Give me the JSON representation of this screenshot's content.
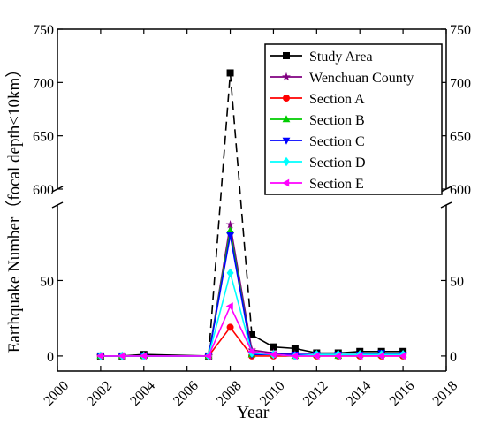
{
  "chart_data": {
    "type": "line",
    "xlabel": "Year",
    "ylabel": "Earthquake Number（focal depth<10km）",
    "xlim": [
      2000,
      2018
    ],
    "xticks": [
      2000,
      2002,
      2004,
      2006,
      2008,
      2010,
      2012,
      2014,
      2016,
      2018
    ],
    "y_axis_break": {
      "lower_range": [
        -10,
        100
      ],
      "upper_range": [
        600,
        750
      ],
      "lower_ticks": [
        0,
        50
      ],
      "upper_ticks": [
        600,
        650,
        700,
        750
      ]
    },
    "mirror_right_axis": true,
    "legend_position": "top-right",
    "x": [
      2002,
      2003,
      2004,
      2007,
      2008,
      2009,
      2010,
      2011,
      2012,
      2013,
      2014,
      2015,
      2016
    ],
    "series": [
      {
        "name": "Study Area",
        "color": "#000000",
        "marker": "square",
        "values": [
          0,
          0,
          1,
          0,
          709,
          14,
          6,
          5,
          2,
          2,
          3,
          3,
          3
        ]
      },
      {
        "name": "Wenchuan County",
        "color": "#800080",
        "marker": "star",
        "values": [
          0,
          0,
          0,
          0,
          87,
          4,
          2,
          1,
          1,
          1,
          1,
          1,
          1
        ]
      },
      {
        "name": "Section A",
        "color": "#ff0000",
        "marker": "circle",
        "values": [
          0,
          0,
          0,
          0,
          19,
          0,
          0,
          0,
          0,
          0,
          0,
          0,
          0
        ]
      },
      {
        "name": "Section B",
        "color": "#00cc00",
        "marker": "triangle-up",
        "values": [
          0,
          0,
          0,
          0,
          83,
          1,
          1,
          0,
          1,
          0,
          1,
          1,
          1
        ]
      },
      {
        "name": "Section C",
        "color": "#0000ff",
        "marker": "triangle-down",
        "values": [
          0,
          0,
          0,
          0,
          80,
          1,
          1,
          1,
          1,
          1,
          1,
          2,
          1
        ]
      },
      {
        "name": "Section D",
        "color": "#00ffff",
        "marker": "diamond",
        "values": [
          0,
          0,
          0,
          0,
          55,
          2,
          1,
          0,
          1,
          1,
          1,
          1,
          1
        ]
      },
      {
        "name": "Section E",
        "color": "#ff00ff",
        "marker": "triangle-left",
        "values": [
          0,
          0,
          0,
          0,
          33,
          3,
          1,
          0,
          0,
          0,
          0,
          0,
          0
        ]
      }
    ]
  }
}
